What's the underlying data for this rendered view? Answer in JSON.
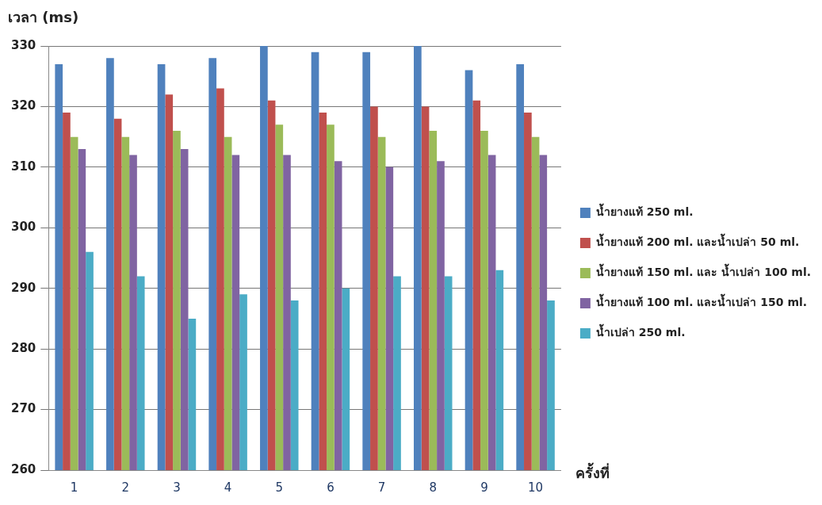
{
  "chart_data": {
    "type": "bar",
    "ylabel": "เวลา (ms)",
    "xlabel": "ครั้งที่",
    "categories": [
      "1",
      "2",
      "3",
      "4",
      "5",
      "6",
      "7",
      "8",
      "9",
      "10"
    ],
    "series": [
      {
        "name": "น้ำยางแท้ 250 ml.",
        "color": "#4f81bd",
        "values": [
          327,
          328,
          327,
          328,
          330,
          329,
          329,
          330,
          326,
          327
        ]
      },
      {
        "name": "น้ำยางแท้ 200 ml. และน้ำเปล่า 50 ml.",
        "color": "#c0504d",
        "values": [
          319,
          318,
          322,
          323,
          321,
          319,
          320,
          320,
          321,
          319
        ]
      },
      {
        "name": "น้ำยางแท้ 150 ml. และ น้ำเปล่า 100 ml.",
        "color": "#9bbb59",
        "values": [
          315,
          315,
          316,
          315,
          317,
          317,
          315,
          316,
          316,
          315
        ]
      },
      {
        "name": "น้ำยางแท้ 100 ml. และน้ำเปล่า 150 ml.",
        "color": "#8064a2",
        "values": [
          313,
          312,
          313,
          312,
          312,
          311,
          310,
          311,
          312,
          312
        ]
      },
      {
        "name": "น้ำเปล่า 250 ml.",
        "color": "#4bacc6",
        "values": [
          296,
          292,
          285,
          289,
          288,
          290,
          292,
          292,
          293,
          288
        ]
      }
    ],
    "ylim": [
      260,
      330
    ],
    "yticks": [
      260,
      270,
      280,
      290,
      300,
      310,
      320,
      330
    ],
    "grid": "y",
    "legend": "right"
  }
}
